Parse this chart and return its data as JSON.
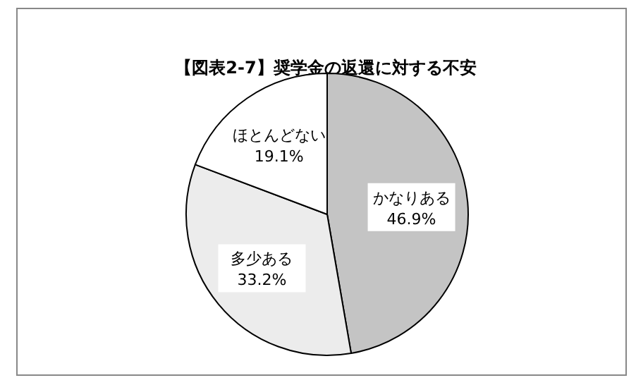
{
  "chart_data": {
    "type": "pie",
    "title": "【図表2-7】奨学金の返還に対する不安",
    "categories": [
      "かなりある",
      "多少ある",
      "ほとんどない"
    ],
    "values": [
      46.9,
      33.2,
      19.1
    ],
    "value_labels": [
      "46.9%",
      "33.2%",
      "19.1%"
    ],
    "colors": [
      "#c4c4c4",
      "#ececec",
      "#ffffff"
    ]
  }
}
